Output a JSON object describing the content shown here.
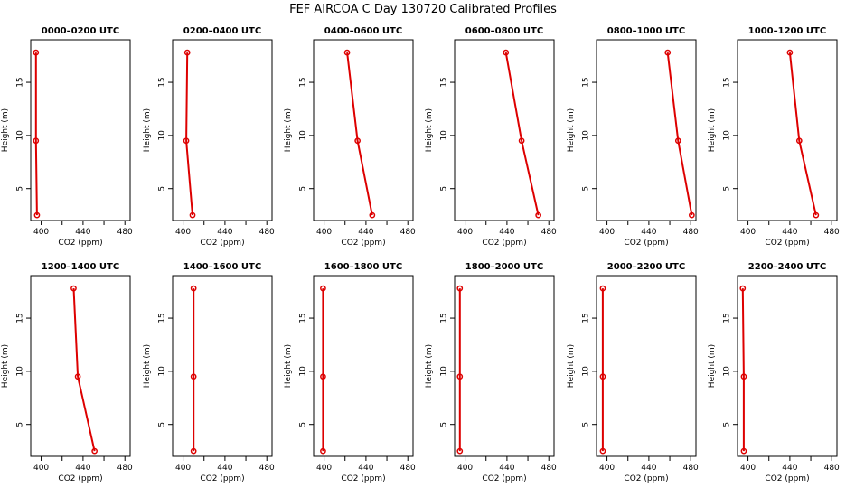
{
  "figure": {
    "title": "FEF AIRCOA C  Day 130720  Calibrated Profiles",
    "line_color": "#dd0000"
  },
  "chart_data": [
    {
      "type": "line",
      "title": "0000–0200 UTC",
      "xlabel": "CO2 (ppm)",
      "ylabel": "Height (m)",
      "xlim": [
        390,
        485
      ],
      "ylim": [
        2,
        19
      ],
      "xticks": [
        400,
        440,
        480
      ],
      "yticks": [
        5,
        10,
        15
      ],
      "x": [
        395,
        395,
        396
      ],
      "y": [
        17.8,
        9.5,
        2.5
      ]
    },
    {
      "type": "line",
      "title": "0200–0400 UTC",
      "xlabel": "CO2 (ppm)",
      "ylabel": "Height (m)",
      "xlim": [
        390,
        485
      ],
      "ylim": [
        2,
        19
      ],
      "xticks": [
        400,
        440,
        480
      ],
      "yticks": [
        5,
        10,
        15
      ],
      "x": [
        404,
        403,
        409
      ],
      "y": [
        17.8,
        9.5,
        2.5
      ]
    },
    {
      "type": "line",
      "title": "0400–0600 UTC",
      "xlabel": "CO2 (ppm)",
      "ylabel": "Height (m)",
      "xlim": [
        390,
        485
      ],
      "ylim": [
        2,
        19
      ],
      "xticks": [
        400,
        440,
        480
      ],
      "yticks": [
        5,
        10,
        15
      ],
      "x": [
        422,
        432,
        446
      ],
      "y": [
        17.8,
        9.5,
        2.5
      ]
    },
    {
      "type": "line",
      "title": "0600–0800 UTC",
      "xlabel": "CO2 (ppm)",
      "ylabel": "Height (m)",
      "xlim": [
        390,
        485
      ],
      "ylim": [
        2,
        19
      ],
      "xticks": [
        400,
        440,
        480
      ],
      "yticks": [
        5,
        10,
        15
      ],
      "x": [
        439,
        454,
        470
      ],
      "y": [
        17.8,
        9.5,
        2.5
      ]
    },
    {
      "type": "line",
      "title": "0800–1000 UTC",
      "xlabel": "CO2 (ppm)",
      "ylabel": "Height (m)",
      "xlim": [
        390,
        485
      ],
      "ylim": [
        2,
        19
      ],
      "xticks": [
        400,
        440,
        480
      ],
      "yticks": [
        5,
        10,
        15
      ],
      "x": [
        458,
        468,
        481
      ],
      "y": [
        17.8,
        9.5,
        2.5
      ]
    },
    {
      "type": "line",
      "title": "1000–1200 UTC",
      "xlabel": "CO2 (ppm)",
      "ylabel": "Height (m)",
      "xlim": [
        390,
        485
      ],
      "ylim": [
        2,
        19
      ],
      "xticks": [
        400,
        440,
        480
      ],
      "yticks": [
        5,
        10,
        15
      ],
      "x": [
        440,
        449,
        465
      ],
      "y": [
        17.8,
        9.5,
        2.5
      ]
    },
    {
      "type": "line",
      "title": "1200–1400 UTC",
      "xlabel": "CO2 (ppm)",
      "ylabel": "Height (m)",
      "xlim": [
        390,
        485
      ],
      "ylim": [
        2,
        19
      ],
      "xticks": [
        400,
        440,
        480
      ],
      "yticks": [
        5,
        10,
        15
      ],
      "x": [
        431,
        435,
        451
      ],
      "y": [
        17.8,
        9.5,
        2.5
      ]
    },
    {
      "type": "line",
      "title": "1400–1600 UTC",
      "xlabel": "CO2 (ppm)",
      "ylabel": "Height (m)",
      "xlim": [
        390,
        485
      ],
      "ylim": [
        2,
        19
      ],
      "xticks": [
        400,
        440,
        480
      ],
      "yticks": [
        5,
        10,
        15
      ],
      "x": [
        410,
        410,
        410
      ],
      "y": [
        17.8,
        9.5,
        2.5
      ]
    },
    {
      "type": "line",
      "title": "1600–1800 UTC",
      "xlabel": "CO2 (ppm)",
      "ylabel": "Height (m)",
      "xlim": [
        390,
        485
      ],
      "ylim": [
        2,
        19
      ],
      "xticks": [
        400,
        440,
        480
      ],
      "yticks": [
        5,
        10,
        15
      ],
      "x": [
        399,
        399,
        399
      ],
      "y": [
        17.8,
        9.5,
        2.5
      ]
    },
    {
      "type": "line",
      "title": "1800–2000 UTC",
      "xlabel": "CO2 (ppm)",
      "ylabel": "Height (m)",
      "xlim": [
        390,
        485
      ],
      "ylim": [
        2,
        19
      ],
      "xticks": [
        400,
        440,
        480
      ],
      "yticks": [
        5,
        10,
        15
      ],
      "x": [
        395,
        395,
        395
      ],
      "y": [
        17.8,
        9.5,
        2.5
      ]
    },
    {
      "type": "line",
      "title": "2000–2200 UTC",
      "xlabel": "CO2 (ppm)",
      "ylabel": "Height (m)",
      "xlim": [
        390,
        485
      ],
      "ylim": [
        2,
        19
      ],
      "xticks": [
        400,
        440,
        480
      ],
      "yticks": [
        5,
        10,
        15
      ],
      "x": [
        396,
        396,
        396
      ],
      "y": [
        17.8,
        9.5,
        2.5
      ]
    },
    {
      "type": "line",
      "title": "2200–2400 UTC",
      "xlabel": "CO2 (ppm)",
      "ylabel": "Height (m)",
      "xlim": [
        390,
        485
      ],
      "ylim": [
        2,
        19
      ],
      "xticks": [
        400,
        440,
        480
      ],
      "yticks": [
        5,
        10,
        15
      ],
      "x": [
        395,
        396,
        396
      ],
      "y": [
        17.8,
        9.5,
        2.5
      ]
    }
  ]
}
